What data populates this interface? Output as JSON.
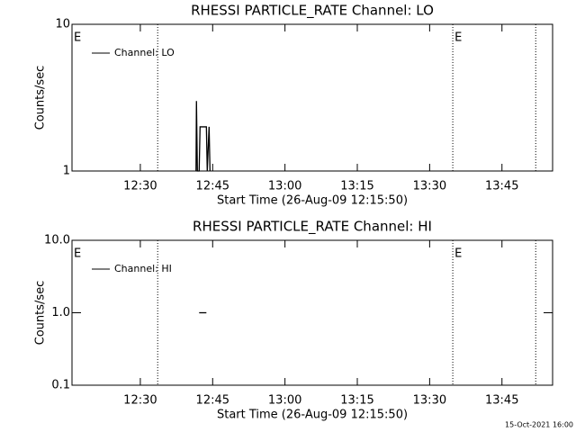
{
  "chart_data": [
    {
      "type": "line",
      "title": "RHESSI PARTICLE_RATE Channel: LO",
      "xlabel": "Start Time (26-Aug-09 12:15:50)",
      "ylabel": "Counts/sec",
      "log_y": true,
      "legend": "upper left",
      "xlim": [
        735.83,
        835.5
      ],
      "xticks": [
        {
          "value": 750,
          "label": "12:30"
        },
        {
          "value": 765,
          "label": "12:45"
        },
        {
          "value": 780,
          "label": "13:00"
        },
        {
          "value": 795,
          "label": "13:15"
        },
        {
          "value": 810,
          "label": "13:30"
        },
        {
          "value": 825,
          "label": "13:45"
        }
      ],
      "ylim": [
        1,
        10
      ],
      "yticks": [
        1,
        10
      ],
      "vlines": [
        753.6,
        814.8,
        832.0
      ],
      "annotations": [
        {
          "text": "E",
          "x": 735.83
        },
        {
          "text": "E",
          "x": 814.8
        }
      ],
      "series": [
        {
          "name": "Channel: LO",
          "color": "#000000",
          "x": [
            761.55,
            761.64,
            761.83,
            762.2,
            762.39,
            763.7,
            763.88,
            764.26,
            764.45
          ],
          "values": [
            1,
            3,
            1,
            1,
            2,
            2,
            1,
            2,
            1
          ]
        }
      ]
    },
    {
      "type": "line",
      "title": "RHESSI PARTICLE_RATE Channel: HI",
      "xlabel": "Start Time (26-Aug-09 12:15:50)",
      "ylabel": "Counts/sec",
      "log_y": true,
      "legend": "upper left",
      "xlim": [
        735.83,
        835.5
      ],
      "xticks": [
        {
          "value": 750,
          "label": "12:30"
        },
        {
          "value": 765,
          "label": "12:45"
        },
        {
          "value": 780,
          "label": "13:00"
        },
        {
          "value": 795,
          "label": "13:15"
        },
        {
          "value": 810,
          "label": "13:30"
        },
        {
          "value": 825,
          "label": "13:45"
        }
      ],
      "ylim": [
        0.1,
        10
      ],
      "yticks": [
        {
          "value": 0.1,
          "label": "0.1"
        },
        {
          "value": 1,
          "label": "1.0"
        },
        {
          "value": 10,
          "label": "10.0"
        }
      ],
      "vlines": [
        753.6,
        814.8,
        832.0
      ],
      "annotations": [
        {
          "text": "E",
          "x": 735.83
        },
        {
          "text": "E",
          "x": 814.8
        }
      ],
      "series": [
        {
          "name": "Channel: HI",
          "color": "#000000",
          "x": [
            762.2,
            763.7
          ],
          "values": [
            1,
            1
          ]
        }
      ]
    }
  ],
  "footer": "15-Oct-2021 16:00"
}
